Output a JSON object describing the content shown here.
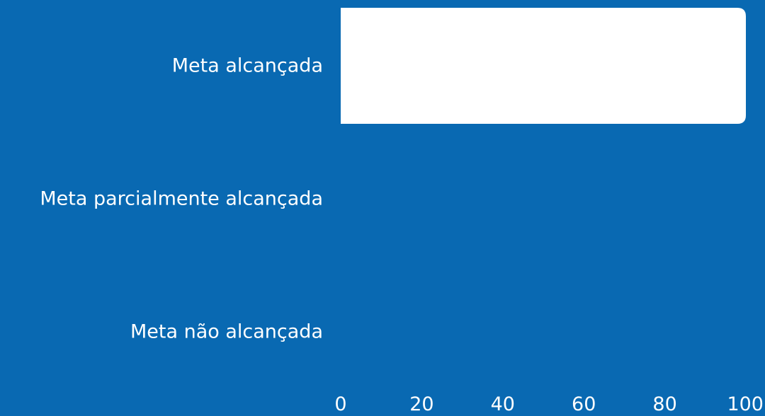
{
  "colors": {
    "background": "#0969b2",
    "bar": "#ffffff",
    "text": "#ffffff"
  },
  "chart_data": {
    "type": "bar",
    "orientation": "horizontal",
    "title": "",
    "xlabel": "",
    "ylabel": "",
    "categories": [
      "Meta alcançada",
      "Meta parcialmente alcançada",
      "Meta não alcançada"
    ],
    "values": [
      100,
      0,
      0
    ],
    "xlim": [
      0,
      100
    ],
    "x_ticks": [
      0,
      20,
      40,
      60,
      80,
      100
    ],
    "x_tick_labels": [
      "0",
      "20",
      "40",
      "60",
      "80",
      "100"
    ],
    "grid": false,
    "legend": "none"
  }
}
